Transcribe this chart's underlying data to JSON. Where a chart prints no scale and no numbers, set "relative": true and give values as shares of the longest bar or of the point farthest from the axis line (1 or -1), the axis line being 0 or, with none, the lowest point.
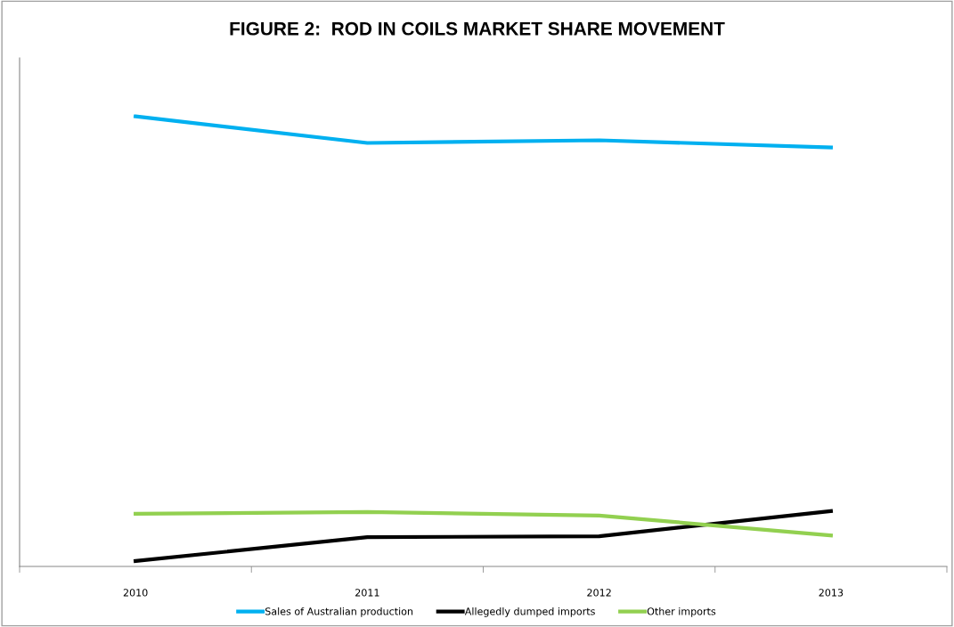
{
  "chart_data": {
    "type": "line",
    "title": "FIGURE 2:  ROD IN COILS MARKET SHARE MOVEMENT",
    "relative": true,
    "categories": [
      "2010",
      "2011",
      "2012",
      "2013"
    ],
    "series": [
      {
        "name": "Sales of Australian production",
        "color": "#00b0f0",
        "values": [
          1,
          0.941,
          0.947,
          0.931
        ]
      },
      {
        "name": "Allegedly dumped imports",
        "color": "#000000",
        "values": [
          0.012,
          0.065,
          0.067,
          0.123
        ]
      },
      {
        "name": "Other imports",
        "color": "#92d050",
        "values": [
          0.117,
          0.121,
          0.113,
          0.069
        ]
      }
    ],
    "legend": "bottom",
    "grid": false,
    "marker": "none",
    "line_style": "solid"
  }
}
